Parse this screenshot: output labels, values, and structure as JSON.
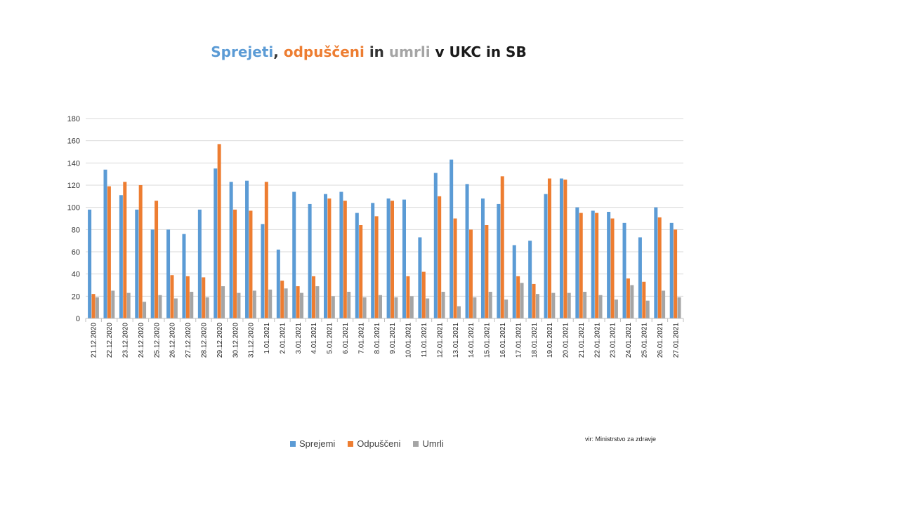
{
  "title_parts": [
    {
      "text": "Sprejeti",
      "color": "#5b9bd5"
    },
    {
      "text": ", ",
      "color": "#333333"
    },
    {
      "text": "odpuščeni",
      "color": "#ed7d31"
    },
    {
      "text": " in ",
      "color": "#333333"
    },
    {
      "text": "umrli",
      "color": "#a5a5a5"
    },
    {
      "text": " v UKC in SB",
      "color": "#1a1a1a"
    }
  ],
  "source": "vir: Ministrstvo za zdravje",
  "chart_data": {
    "type": "bar",
    "ylim": [
      0,
      180
    ],
    "yticks": [
      0,
      20,
      40,
      60,
      80,
      100,
      120,
      140,
      160,
      180
    ],
    "grid": true,
    "legend_position": "bottom",
    "categories": [
      "21.12.2020",
      "22.12.2020",
      "23.12.2020",
      "24.12.2020",
      "25.12.2020",
      "26.12.2020",
      "27.12.2020",
      "28.12.2020",
      "29.12.2020",
      "30.12.2020",
      "31.12.2020",
      "1.01.2021",
      "2.01.2021",
      "3.01.2021",
      "4.01.2021",
      "5.01.2021",
      "6.01.2021",
      "7.01.2021",
      "8.01.2021",
      "9.01.2021",
      "10.01.2021",
      "11.01.2021",
      "12.01.2021",
      "13.01.2021",
      "14.01.2021",
      "15.01.2021",
      "16.01.2021",
      "17.01.2021",
      "18.01.2021",
      "19.01.2021",
      "20.01.2021",
      "21.01.2021",
      "22.01.2021",
      "23.01.2021",
      "24.01.2021",
      "25.01.2021",
      "26.01.2021",
      "27.01.2021"
    ],
    "series": [
      {
        "name": "Sprejemi",
        "color": "#5b9bd5",
        "values": [
          98,
          134,
          111,
          98,
          80,
          80,
          76,
          98,
          135,
          123,
          124,
          85,
          62,
          114,
          103,
          112,
          114,
          95,
          104,
          108,
          107,
          73,
          131,
          143,
          121,
          108,
          103,
          66,
          70,
          112,
          126,
          100,
          97,
          96,
          86,
          73,
          100,
          86
        ]
      },
      {
        "name": "Odpuščeni",
        "color": "#ed7d31",
        "values": [
          22,
          119,
          123,
          120,
          106,
          39,
          38,
          37,
          157,
          98,
          97,
          123,
          34,
          29,
          38,
          108,
          106,
          84,
          92,
          106,
          38,
          42,
          110,
          90,
          80,
          84,
          128,
          38,
          31,
          126,
          125,
          95,
          95,
          90,
          36,
          33,
          91,
          80
        ]
      },
      {
        "name": "Umrli",
        "color": "#a5a5a5",
        "values": [
          19,
          25,
          23,
          15,
          21,
          18,
          24,
          19,
          29,
          23,
          25,
          26,
          27,
          23,
          29,
          20,
          24,
          19,
          21,
          19,
          20,
          18,
          24,
          11,
          19,
          24,
          17,
          32,
          22,
          23,
          23,
          24,
          21,
          17,
          30,
          16,
          25,
          19
        ]
      }
    ]
  }
}
